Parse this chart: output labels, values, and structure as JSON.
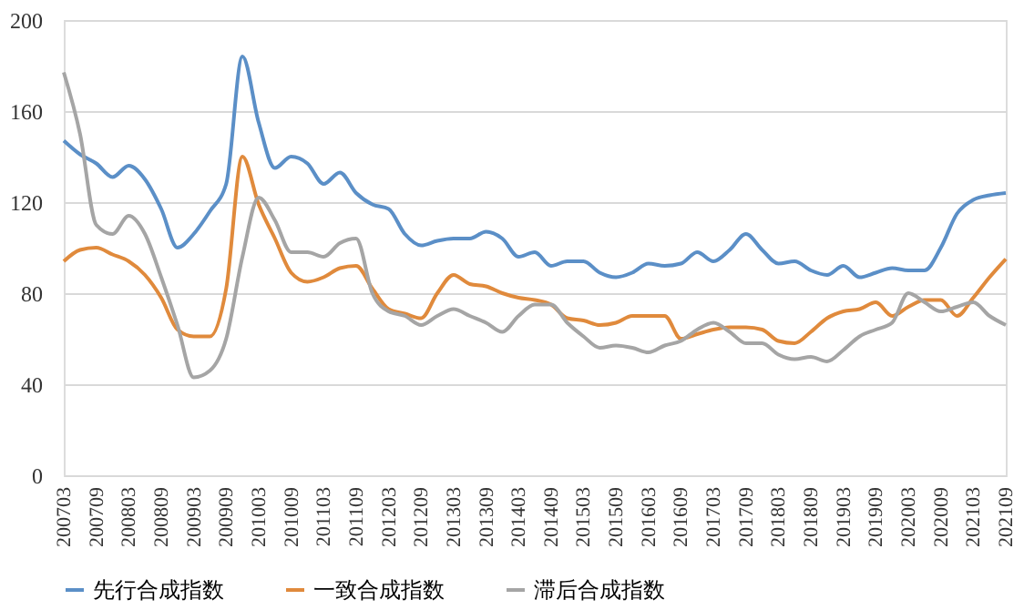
{
  "chart_data": {
    "type": "line",
    "categories": [
      "200703",
      null,
      "200709",
      null,
      "200803",
      null,
      "200809",
      null,
      "200903",
      null,
      "200909",
      null,
      "201003",
      null,
      "201009",
      null,
      "201103",
      null,
      "201109",
      null,
      "201203",
      null,
      "201209",
      null,
      "201303",
      null,
      "201309",
      null,
      "201403",
      null,
      "201409",
      null,
      "201503",
      null,
      "201509",
      null,
      "201603",
      null,
      "201609",
      null,
      "201703",
      null,
      "201709",
      null,
      "201803",
      null,
      "201809",
      null,
      "201903",
      null,
      "201909",
      null,
      "202003",
      null,
      "202009",
      null,
      "202103",
      null,
      "202109"
    ],
    "series": [
      {
        "name": "先行合成指数",
        "color": "#5b8fc7",
        "values": [
          147,
          141,
          137,
          131,
          136,
          130,
          117,
          100,
          106,
          116,
          128,
          184,
          155,
          135,
          140,
          137,
          128,
          133,
          124,
          119,
          117,
          106,
          101,
          103,
          104,
          104,
          107,
          104,
          96,
          98,
          92,
          94,
          94,
          89,
          87,
          89,
          93,
          92,
          93,
          98,
          94,
          99,
          106,
          99,
          93,
          94,
          90,
          88,
          92,
          87,
          89,
          91,
          90,
          90,
          100,
          115,
          121,
          123,
          124
        ]
      },
      {
        "name": "一致合成指数",
        "color": "#e08a3c",
        "values": [
          94,
          99,
          100,
          97,
          94,
          88,
          78,
          64,
          61,
          61,
          82,
          140,
          119,
          104,
          89,
          85,
          87,
          91,
          92,
          82,
          73,
          71,
          69,
          80,
          88,
          84,
          83,
          80,
          78,
          77,
          75,
          69,
          68,
          66,
          67,
          70,
          70,
          70,
          60,
          62,
          64,
          65,
          65,
          64,
          59,
          58,
          63,
          69,
          72,
          73,
          76,
          70,
          74,
          77,
          77,
          70,
          78,
          87,
          95
        ]
      },
      {
        "name": "滞后合成指数",
        "color": "#a5a5a5",
        "values": [
          177,
          150,
          110,
          106,
          114,
          106,
          87,
          66,
          43,
          46,
          60,
          96,
          122,
          112,
          98,
          98,
          96,
          102,
          104,
          80,
          72,
          70,
          66,
          70,
          73,
          70,
          67,
          63,
          70,
          75,
          75,
          67,
          61,
          56,
          57,
          56,
          54,
          57,
          59,
          64,
          67,
          63,
          58,
          58,
          53,
          51,
          52,
          50,
          55,
          61,
          64,
          67,
          80,
          76,
          72,
          74,
          76,
          70,
          66
        ]
      }
    ],
    "ylim": [
      0,
      200
    ],
    "yticks": [
      0,
      40,
      80,
      120,
      160,
      200
    ],
    "grid": "y",
    "legend": "bottom",
    "marker": "none",
    "line_style": "solid"
  }
}
